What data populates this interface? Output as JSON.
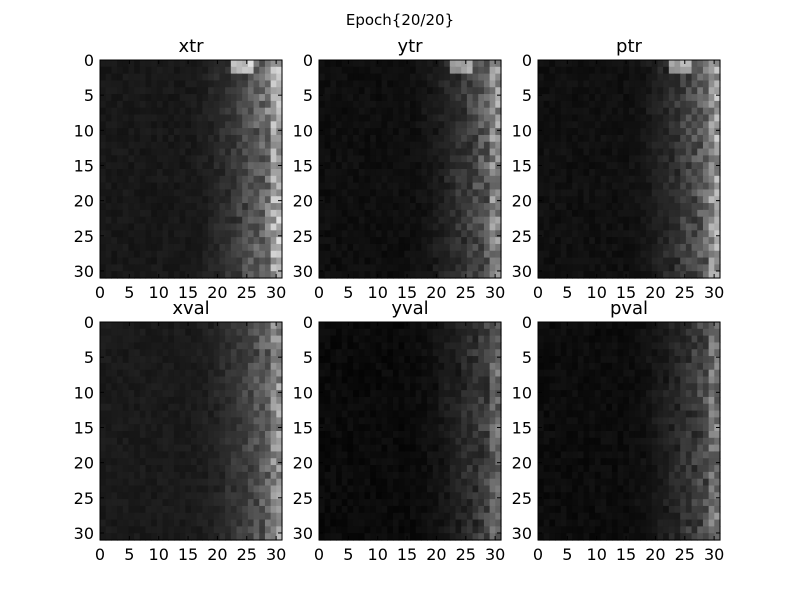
{
  "figure": {
    "suptitle": "Epoch{20/20}"
  },
  "chart_data": [
    {
      "type": "heatmap",
      "title": "xtr",
      "colormap": "gray",
      "grid": false,
      "xlim": [
        0,
        31
      ],
      "ylim": [
        31,
        0
      ],
      "xticks": [
        0,
        5,
        10,
        15,
        20,
        25,
        30
      ],
      "yticks": [
        0,
        5,
        10,
        15,
        20,
        25,
        30
      ]
    },
    {
      "type": "heatmap",
      "title": "ytr",
      "colormap": "gray",
      "grid": false,
      "xlim": [
        0,
        31
      ],
      "ylim": [
        31,
        0
      ],
      "xticks": [
        0,
        5,
        10,
        15,
        20,
        25,
        30
      ],
      "yticks": [
        0,
        5,
        10,
        15,
        20,
        25,
        30
      ]
    },
    {
      "type": "heatmap",
      "title": "ptr",
      "colormap": "gray",
      "grid": false,
      "xlim": [
        0,
        31
      ],
      "ylim": [
        31,
        0
      ],
      "xticks": [
        0,
        5,
        10,
        15,
        20,
        25,
        30
      ],
      "yticks": [
        0,
        5,
        10,
        15,
        20,
        25,
        30
      ]
    },
    {
      "type": "heatmap",
      "title": "xval",
      "colormap": "gray",
      "grid": false,
      "xlim": [
        0,
        31
      ],
      "ylim": [
        31,
        0
      ],
      "xticks": [
        0,
        5,
        10,
        15,
        20,
        25,
        30
      ],
      "yticks": [
        0,
        5,
        10,
        15,
        20,
        25,
        30
      ]
    },
    {
      "type": "heatmap",
      "title": "yval",
      "colormap": "gray",
      "grid": false,
      "xlim": [
        0,
        31
      ],
      "ylim": [
        31,
        0
      ],
      "xticks": [
        0,
        5,
        10,
        15,
        20,
        25,
        30
      ],
      "yticks": [
        0,
        5,
        10,
        15,
        20,
        25,
        30
      ]
    },
    {
      "type": "heatmap",
      "title": "pval",
      "colormap": "gray",
      "grid": false,
      "xlim": [
        0,
        31
      ],
      "ylim": [
        31,
        0
      ],
      "xticks": [
        0,
        5,
        10,
        15,
        20,
        25,
        30
      ],
      "yticks": [
        0,
        5,
        10,
        15,
        20,
        25,
        30
      ]
    }
  ]
}
